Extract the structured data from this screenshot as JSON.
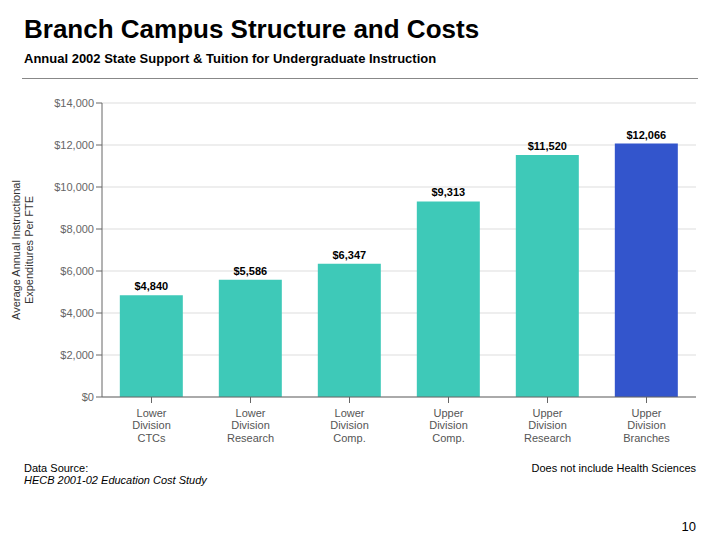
{
  "chart_data": {
    "type": "bar",
    "title": "Branch Campus Structure and Costs",
    "subtitle": "Annual 2002 State Support & Tuition for Undergraduate Instruction",
    "ylabel": "Average Annual Instructional\nExpenditures Per FTE",
    "categories": [
      "Lower\nDivision\nCTCs",
      "Lower\nDivision\nResearch",
      "Lower\nDivision\nComp.",
      "Upper\nDivision\nComp.",
      "Upper\nDivision\nResearch",
      "Upper\nDivision\nBranches"
    ],
    "values": [
      4840,
      5586,
      6347,
      9313,
      11520,
      12066
    ],
    "value_labels": [
      "$4,840",
      "$5,586",
      "$6,347",
      "$9,313",
      "$11,520",
      "$12,066"
    ],
    "data_labels": true,
    "colors": [
      "#3EC9B8",
      "#3EC9B8",
      "#3EC9B8",
      "#3EC9B8",
      "#3EC9B8",
      "#3355CC"
    ],
    "ylim": [
      0,
      14000
    ],
    "yticks": [
      {
        "value": 0,
        "label": "$0"
      },
      {
        "value": 2000,
        "label": "$2,000"
      },
      {
        "value": 4000,
        "label": "$4,000"
      },
      {
        "value": 6000,
        "label": "$6,000"
      },
      {
        "value": 8000,
        "label": "$8,000"
      },
      {
        "value": 10000,
        "label": "$10,000"
      },
      {
        "value": 12000,
        "label": "$12,000"
      },
      {
        "value": 14000,
        "label": "$14,000"
      }
    ],
    "grid": true,
    "annotations": [
      "Data Source:",
      "HECB 2001-02 Education Cost Study",
      "Does not include Health Sciences",
      "10"
    ]
  }
}
